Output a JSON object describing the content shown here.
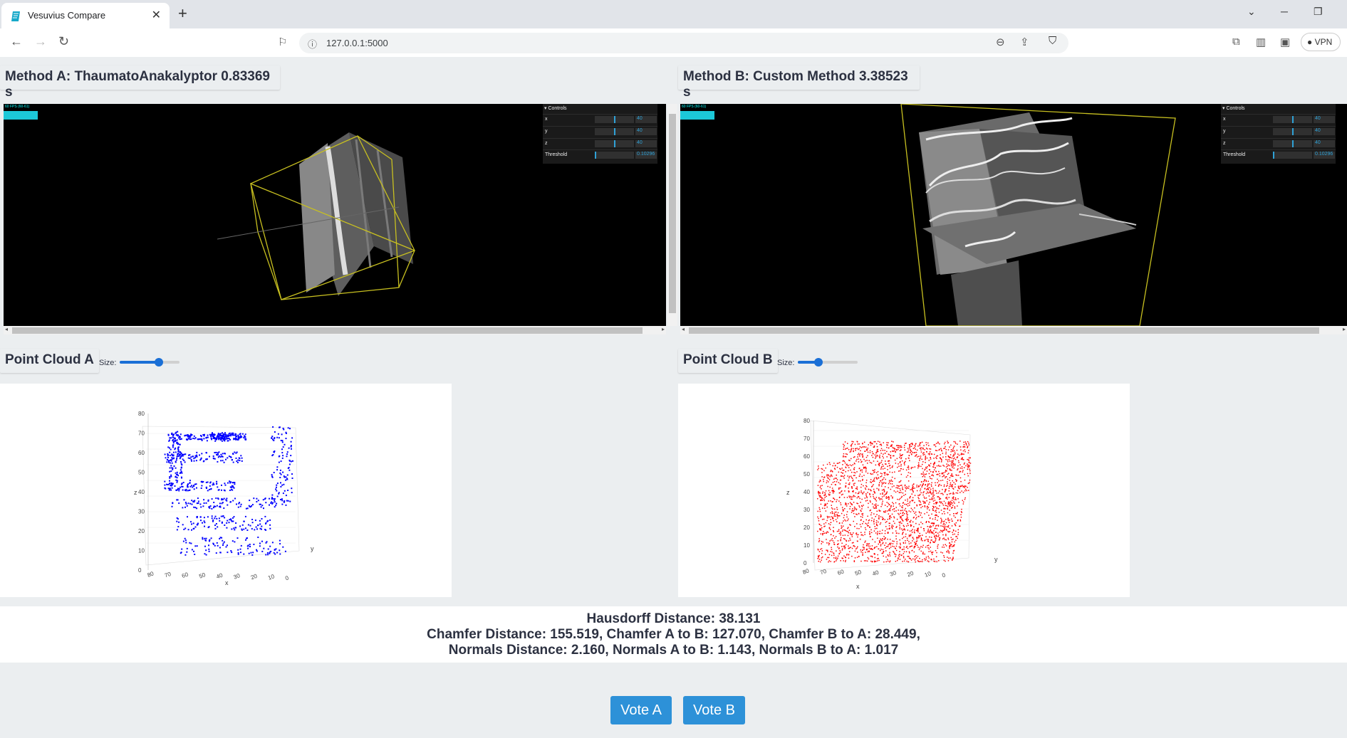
{
  "browser": {
    "tab_title": "Vesuvius Compare",
    "url": "127.0.0.1:5000",
    "vpn_label": "VPN"
  },
  "method_a": {
    "header": "Method A: ThaumatoAnakalyptor 0.83369 s"
  },
  "method_b": {
    "header": "Method B: Custom Method 3.38523 s"
  },
  "viewer": {
    "fps_text": "60 FPS (60-61)",
    "controls_title": "Controls",
    "x_label": "x",
    "x_value": "40",
    "y_label": "y",
    "y_value": "40",
    "z_label": "z",
    "z_value": "40",
    "threshold_label": "Threshold",
    "threshold_value": "0.10296"
  },
  "point_cloud_a": {
    "title": "Point Cloud A",
    "size_label": "Size:",
    "size_value": 0.65,
    "color": "#0000ff"
  },
  "point_cloud_b": {
    "title": "Point Cloud B",
    "size_label": "Size:",
    "size_value": 0.35,
    "color": "#ff0000"
  },
  "plot_axes": {
    "z_ticks": [
      "80",
      "70",
      "60",
      "50",
      "40",
      "30",
      "20",
      "10",
      "0"
    ],
    "x_ticks_a": [
      "80",
      "70",
      "60",
      "50",
      "40",
      "30",
      "20",
      "10",
      "0"
    ],
    "x_ticks_b": [
      "80",
      "70",
      "60",
      "50",
      "40",
      "30",
      "20",
      "10",
      "0"
    ],
    "x_label": "x",
    "y_label": "y",
    "z_label": "z"
  },
  "metrics": {
    "line1": "Hausdorff Distance: 38.131",
    "line2": "Chamfer Distance: 155.519, Chamfer A to B: 127.070, Chamfer B to A: 28.449,",
    "line3": "Normals Distance: 2.160, Normals A to B: 1.143, Normals B to A: 1.017"
  },
  "buttons": {
    "vote_a": "Vote A",
    "vote_b": "Vote B"
  }
}
